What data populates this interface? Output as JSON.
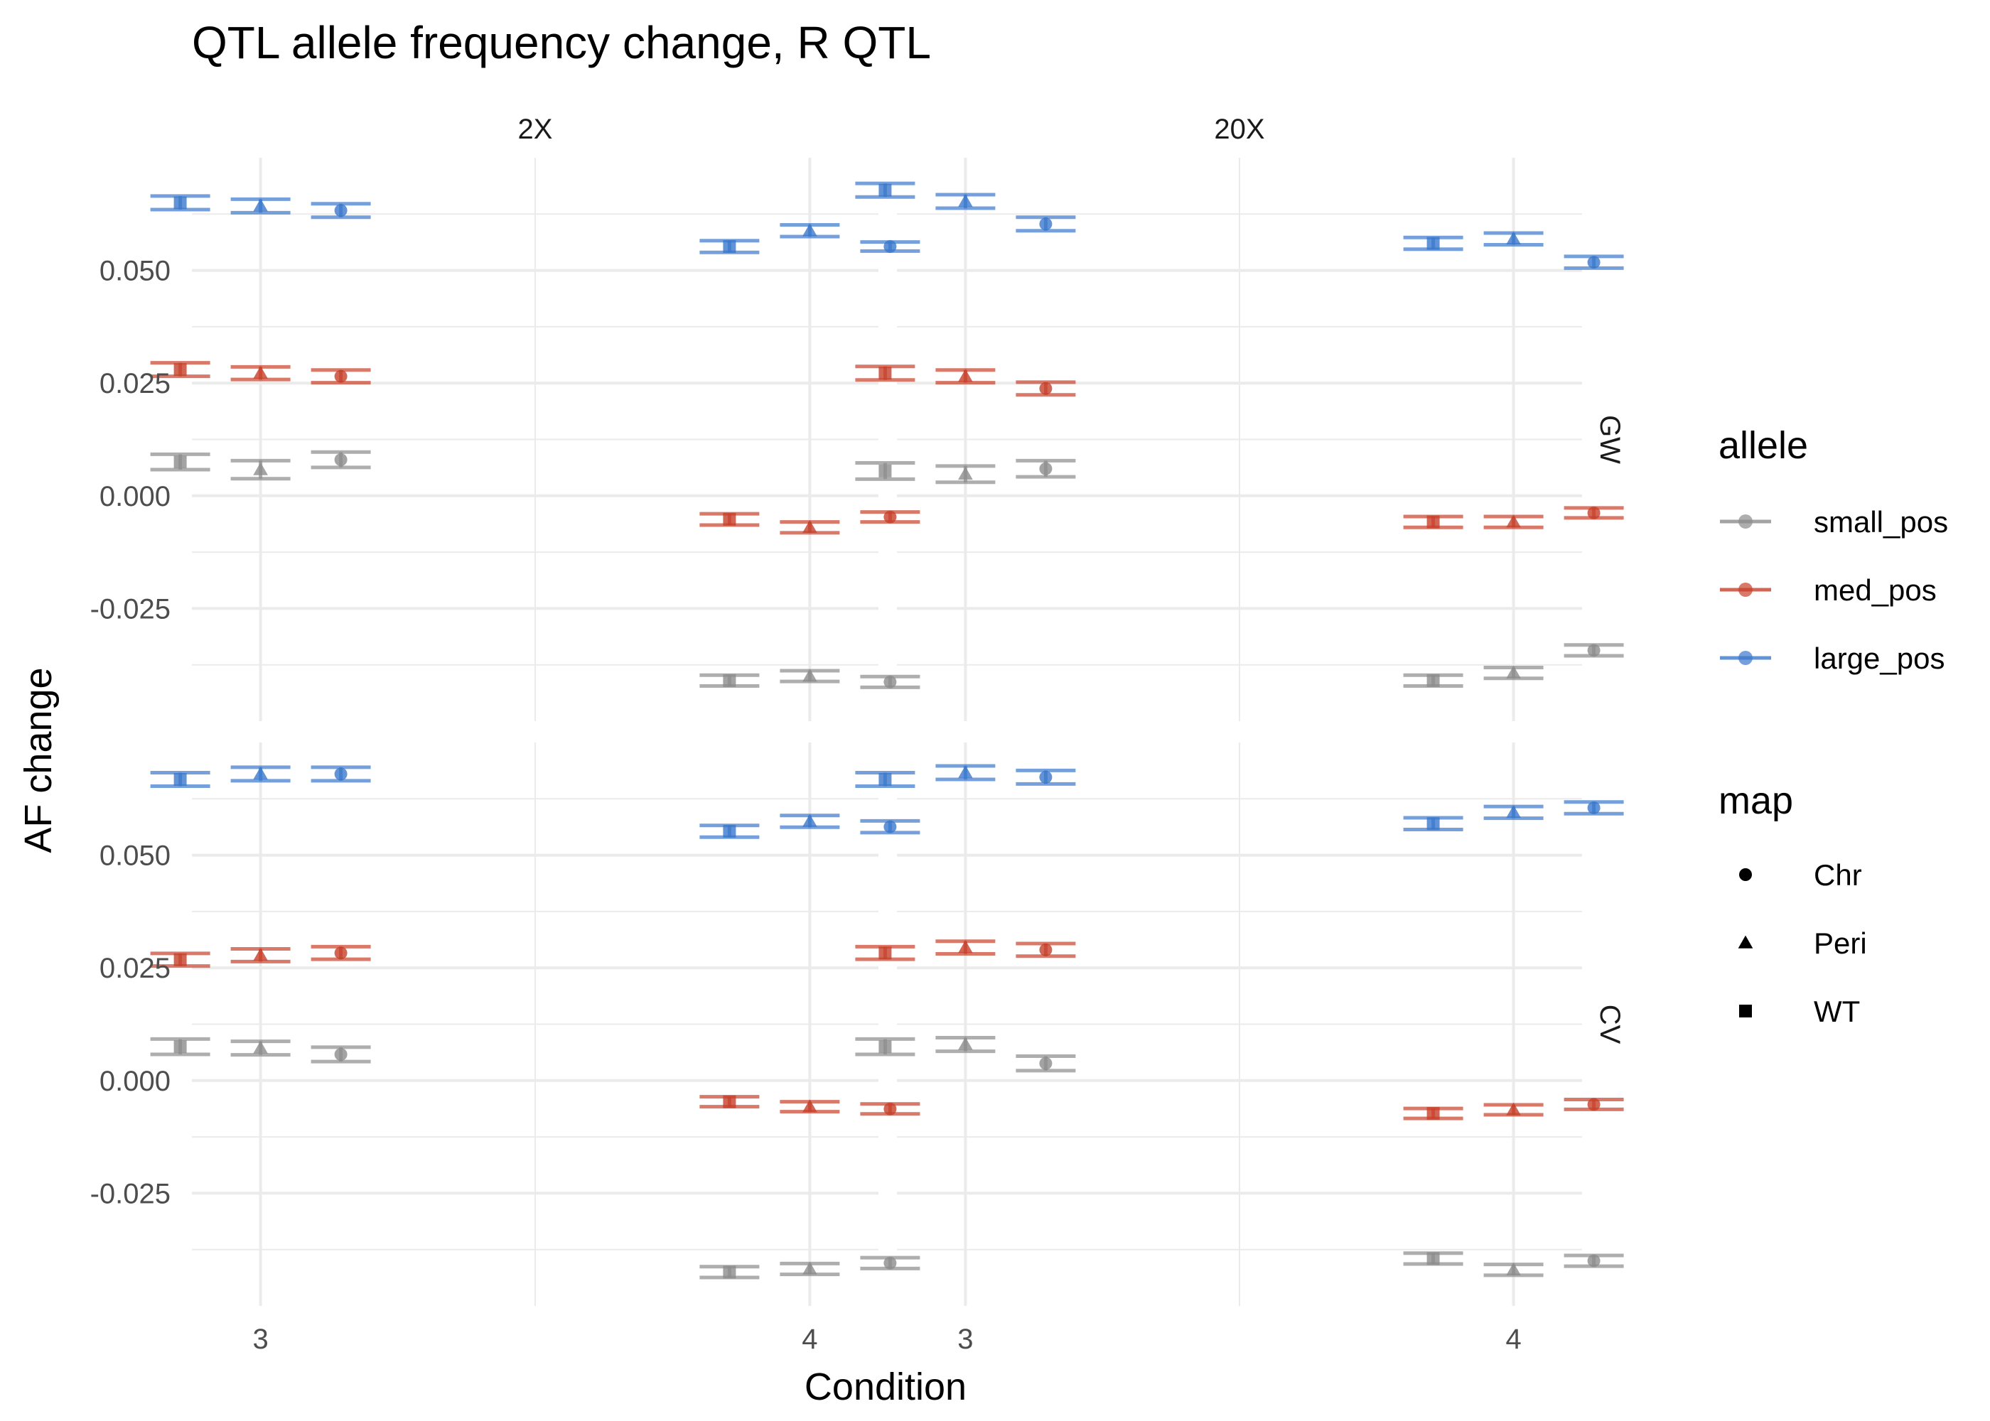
{
  "chart_data": {
    "type": "scatter",
    "title": "QTL allele frequency change, R QTL",
    "xlabel": "Condition",
    "ylabel": "AF change",
    "x_categories": [
      "3",
      "4"
    ],
    "dodge_order": [
      "WT",
      "Peri",
      "Chr"
    ],
    "col_facets": [
      "2X",
      "20X"
    ],
    "row_facets": [
      "GW",
      "CV"
    ],
    "ylim": [
      -0.05,
      0.075
    ],
    "y_ticks": [
      -0.025,
      0.0,
      0.025,
      0.05
    ],
    "y_tick_labels": [
      "-0.025",
      "0.000",
      "0.025",
      "0.050"
    ],
    "grid": true,
    "error_bars": true,
    "legend_position": "right",
    "legends": [
      {
        "title": "allele",
        "entries": [
          {
            "label": "small_pos",
            "color": "#8c8c8c"
          },
          {
            "label": "med_pos",
            "color": "#c7402a"
          },
          {
            "label": "large_pos",
            "color": "#3a78cc"
          }
        ]
      },
      {
        "title": "map",
        "entries": [
          {
            "label": "Chr",
            "shape": "circle"
          },
          {
            "label": "Peri",
            "shape": "triangle"
          },
          {
            "label": "WT",
            "shape": "square"
          }
        ]
      }
    ],
    "panels": [
      {
        "row": "GW",
        "col": "2X",
        "points": [
          {
            "allele": "large_pos",
            "condition": "3",
            "map": "WT",
            "y": 0.065,
            "ymin": 0.0635,
            "ymax": 0.0665
          },
          {
            "allele": "large_pos",
            "condition": "3",
            "map": "Peri",
            "y": 0.0643,
            "ymin": 0.0628,
            "ymax": 0.0658
          },
          {
            "allele": "large_pos",
            "condition": "3",
            "map": "Chr",
            "y": 0.0633,
            "ymin": 0.0618,
            "ymax": 0.0648
          },
          {
            "allele": "large_pos",
            "condition": "4",
            "map": "WT",
            "y": 0.0553,
            "ymin": 0.054,
            "ymax": 0.0566
          },
          {
            "allele": "large_pos",
            "condition": "4",
            "map": "Peri",
            "y": 0.0588,
            "ymin": 0.0575,
            "ymax": 0.0601
          },
          {
            "allele": "large_pos",
            "condition": "4",
            "map": "Chr",
            "y": 0.0553,
            "ymin": 0.0543,
            "ymax": 0.0563
          },
          {
            "allele": "med_pos",
            "condition": "3",
            "map": "WT",
            "y": 0.028,
            "ymin": 0.0265,
            "ymax": 0.0295
          },
          {
            "allele": "med_pos",
            "condition": "3",
            "map": "Peri",
            "y": 0.0272,
            "ymin": 0.0258,
            "ymax": 0.0286
          },
          {
            "allele": "med_pos",
            "condition": "3",
            "map": "Chr",
            "y": 0.0265,
            "ymin": 0.0251,
            "ymax": 0.0279
          },
          {
            "allele": "med_pos",
            "condition": "4",
            "map": "WT",
            "y": -0.0052,
            "ymin": -0.0065,
            "ymax": -0.004
          },
          {
            "allele": "med_pos",
            "condition": "4",
            "map": "Peri",
            "y": -0.007,
            "ymin": -0.0082,
            "ymax": -0.0058
          },
          {
            "allele": "med_pos",
            "condition": "4",
            "map": "Chr",
            "y": -0.0047,
            "ymin": -0.0058,
            "ymax": -0.0036
          },
          {
            "allele": "small_pos",
            "condition": "3",
            "map": "WT",
            "y": 0.0075,
            "ymin": 0.0058,
            "ymax": 0.0092
          },
          {
            "allele": "small_pos",
            "condition": "3",
            "map": "Peri",
            "y": 0.0058,
            "ymin": 0.0038,
            "ymax": 0.0078
          },
          {
            "allele": "small_pos",
            "condition": "3",
            "map": "Chr",
            "y": 0.008,
            "ymin": 0.0063,
            "ymax": 0.0097
          },
          {
            "allele": "small_pos",
            "condition": "4",
            "map": "WT",
            "y": -0.041,
            "ymin": -0.0422,
            "ymax": -0.0398
          },
          {
            "allele": "small_pos",
            "condition": "4",
            "map": "Peri",
            "y": -0.04,
            "ymin": -0.0412,
            "ymax": -0.0388
          },
          {
            "allele": "small_pos",
            "condition": "4",
            "map": "Chr",
            "y": -0.0413,
            "ymin": -0.0425,
            "ymax": -0.0401
          }
        ]
      },
      {
        "row": "GW",
        "col": "20X",
        "points": [
          {
            "allele": "large_pos",
            "condition": "3",
            "map": "WT",
            "y": 0.0678,
            "ymin": 0.0663,
            "ymax": 0.0693
          },
          {
            "allele": "large_pos",
            "condition": "3",
            "map": "Peri",
            "y": 0.0653,
            "ymin": 0.0638,
            "ymax": 0.0668
          },
          {
            "allele": "large_pos",
            "condition": "3",
            "map": "Chr",
            "y": 0.0603,
            "ymin": 0.0588,
            "ymax": 0.0618
          },
          {
            "allele": "large_pos",
            "condition": "4",
            "map": "WT",
            "y": 0.056,
            "ymin": 0.0547,
            "ymax": 0.0573
          },
          {
            "allele": "large_pos",
            "condition": "4",
            "map": "Peri",
            "y": 0.057,
            "ymin": 0.0557,
            "ymax": 0.0583
          },
          {
            "allele": "large_pos",
            "condition": "4",
            "map": "Chr",
            "y": 0.0518,
            "ymin": 0.0505,
            "ymax": 0.0531
          },
          {
            "allele": "med_pos",
            "condition": "3",
            "map": "WT",
            "y": 0.0272,
            "ymin": 0.0257,
            "ymax": 0.0287
          },
          {
            "allele": "med_pos",
            "condition": "3",
            "map": "Peri",
            "y": 0.0265,
            "ymin": 0.0251,
            "ymax": 0.0279
          },
          {
            "allele": "med_pos",
            "condition": "3",
            "map": "Chr",
            "y": 0.0238,
            "ymin": 0.0224,
            "ymax": 0.0252
          },
          {
            "allele": "med_pos",
            "condition": "4",
            "map": "WT",
            "y": -0.0058,
            "ymin": -0.007,
            "ymax": -0.0046
          },
          {
            "allele": "med_pos",
            "condition": "4",
            "map": "Peri",
            "y": -0.0058,
            "ymin": -0.007,
            "ymax": -0.0046
          },
          {
            "allele": "med_pos",
            "condition": "4",
            "map": "Chr",
            "y": -0.0038,
            "ymin": -0.0049,
            "ymax": -0.0027
          },
          {
            "allele": "small_pos",
            "condition": "3",
            "map": "WT",
            "y": 0.0055,
            "ymin": 0.0037,
            "ymax": 0.0073
          },
          {
            "allele": "small_pos",
            "condition": "3",
            "map": "Peri",
            "y": 0.0048,
            "ymin": 0.003,
            "ymax": 0.0066
          },
          {
            "allele": "small_pos",
            "condition": "3",
            "map": "Chr",
            "y": 0.006,
            "ymin": 0.0042,
            "ymax": 0.0078
          },
          {
            "allele": "small_pos",
            "condition": "4",
            "map": "WT",
            "y": -0.041,
            "ymin": -0.0422,
            "ymax": -0.0398
          },
          {
            "allele": "small_pos",
            "condition": "4",
            "map": "Peri",
            "y": -0.0393,
            "ymin": -0.0405,
            "ymax": -0.0381
          },
          {
            "allele": "small_pos",
            "condition": "4",
            "map": "Chr",
            "y": -0.0343,
            "ymin": -0.0355,
            "ymax": -0.0331
          }
        ]
      },
      {
        "row": "CV",
        "col": "2X",
        "points": [
          {
            "allele": "large_pos",
            "condition": "3",
            "map": "WT",
            "y": 0.0668,
            "ymin": 0.0653,
            "ymax": 0.0683
          },
          {
            "allele": "large_pos",
            "condition": "3",
            "map": "Peri",
            "y": 0.068,
            "ymin": 0.0665,
            "ymax": 0.0695
          },
          {
            "allele": "large_pos",
            "condition": "3",
            "map": "Chr",
            "y": 0.068,
            "ymin": 0.0665,
            "ymax": 0.0695
          },
          {
            "allele": "large_pos",
            "condition": "4",
            "map": "WT",
            "y": 0.0553,
            "ymin": 0.054,
            "ymax": 0.0566
          },
          {
            "allele": "large_pos",
            "condition": "4",
            "map": "Peri",
            "y": 0.0575,
            "ymin": 0.0562,
            "ymax": 0.0588
          },
          {
            "allele": "large_pos",
            "condition": "4",
            "map": "Chr",
            "y": 0.0563,
            "ymin": 0.055,
            "ymax": 0.0576
          },
          {
            "allele": "med_pos",
            "condition": "3",
            "map": "WT",
            "y": 0.0268,
            "ymin": 0.0254,
            "ymax": 0.0282
          },
          {
            "allele": "med_pos",
            "condition": "3",
            "map": "Peri",
            "y": 0.0278,
            "ymin": 0.0264,
            "ymax": 0.0292
          },
          {
            "allele": "med_pos",
            "condition": "3",
            "map": "Chr",
            "y": 0.0283,
            "ymin": 0.0269,
            "ymax": 0.0297
          },
          {
            "allele": "med_pos",
            "condition": "4",
            "map": "WT",
            "y": -0.0047,
            "ymin": -0.0058,
            "ymax": -0.0036
          },
          {
            "allele": "med_pos",
            "condition": "4",
            "map": "Peri",
            "y": -0.0058,
            "ymin": -0.0069,
            "ymax": -0.0047
          },
          {
            "allele": "med_pos",
            "condition": "4",
            "map": "Chr",
            "y": -0.0063,
            "ymin": -0.0074,
            "ymax": -0.0052
          },
          {
            "allele": "small_pos",
            "condition": "3",
            "map": "WT",
            "y": 0.0075,
            "ymin": 0.0058,
            "ymax": 0.0092
          },
          {
            "allele": "small_pos",
            "condition": "3",
            "map": "Peri",
            "y": 0.0072,
            "ymin": 0.0057,
            "ymax": 0.0087
          },
          {
            "allele": "small_pos",
            "condition": "3",
            "map": "Chr",
            "y": 0.0058,
            "ymin": 0.0042,
            "ymax": 0.0074
          },
          {
            "allele": "small_pos",
            "condition": "4",
            "map": "WT",
            "y": -0.0425,
            "ymin": -0.0437,
            "ymax": -0.0413
          },
          {
            "allele": "small_pos",
            "condition": "4",
            "map": "Peri",
            "y": -0.0418,
            "ymin": -0.043,
            "ymax": -0.0406
          },
          {
            "allele": "small_pos",
            "condition": "4",
            "map": "Chr",
            "y": -0.0405,
            "ymin": -0.0417,
            "ymax": -0.0393
          }
        ]
      },
      {
        "row": "CV",
        "col": "20X",
        "points": [
          {
            "allele": "large_pos",
            "condition": "3",
            "map": "WT",
            "y": 0.0668,
            "ymin": 0.0653,
            "ymax": 0.0683
          },
          {
            "allele": "large_pos",
            "condition": "3",
            "map": "Peri",
            "y": 0.0683,
            "ymin": 0.0668,
            "ymax": 0.0698
          },
          {
            "allele": "large_pos",
            "condition": "3",
            "map": "Chr",
            "y": 0.0673,
            "ymin": 0.0658,
            "ymax": 0.0688
          },
          {
            "allele": "large_pos",
            "condition": "4",
            "map": "WT",
            "y": 0.057,
            "ymin": 0.0557,
            "ymax": 0.0583
          },
          {
            "allele": "large_pos",
            "condition": "4",
            "map": "Peri",
            "y": 0.0595,
            "ymin": 0.0582,
            "ymax": 0.0608
          },
          {
            "allele": "large_pos",
            "condition": "4",
            "map": "Chr",
            "y": 0.0605,
            "ymin": 0.0592,
            "ymax": 0.0618
          },
          {
            "allele": "med_pos",
            "condition": "3",
            "map": "WT",
            "y": 0.0283,
            "ymin": 0.0269,
            "ymax": 0.0297
          },
          {
            "allele": "med_pos",
            "condition": "3",
            "map": "Peri",
            "y": 0.0295,
            "ymin": 0.0281,
            "ymax": 0.0309
          },
          {
            "allele": "med_pos",
            "condition": "3",
            "map": "Chr",
            "y": 0.029,
            "ymin": 0.0276,
            "ymax": 0.0304
          },
          {
            "allele": "med_pos",
            "condition": "4",
            "map": "WT",
            "y": -0.0073,
            "ymin": -0.0084,
            "ymax": -0.0062
          },
          {
            "allele": "med_pos",
            "condition": "4",
            "map": "Peri",
            "y": -0.0065,
            "ymin": -0.0076,
            "ymax": -0.0054
          },
          {
            "allele": "med_pos",
            "condition": "4",
            "map": "Chr",
            "y": -0.0053,
            "ymin": -0.0064,
            "ymax": -0.0042
          },
          {
            "allele": "small_pos",
            "condition": "3",
            "map": "WT",
            "y": 0.0075,
            "ymin": 0.0058,
            "ymax": 0.0092
          },
          {
            "allele": "small_pos",
            "condition": "3",
            "map": "Peri",
            "y": 0.008,
            "ymin": 0.0065,
            "ymax": 0.0095
          },
          {
            "allele": "small_pos",
            "condition": "3",
            "map": "Chr",
            "y": 0.0038,
            "ymin": 0.0022,
            "ymax": 0.0054
          },
          {
            "allele": "small_pos",
            "condition": "4",
            "map": "WT",
            "y": -0.0395,
            "ymin": -0.0407,
            "ymax": -0.0383
          },
          {
            "allele": "small_pos",
            "condition": "4",
            "map": "Peri",
            "y": -0.042,
            "ymin": -0.0432,
            "ymax": -0.0408
          },
          {
            "allele": "small_pos",
            "condition": "4",
            "map": "Chr",
            "y": -0.04,
            "ymin": -0.0412,
            "ymax": -0.0388
          }
        ]
      }
    ]
  }
}
